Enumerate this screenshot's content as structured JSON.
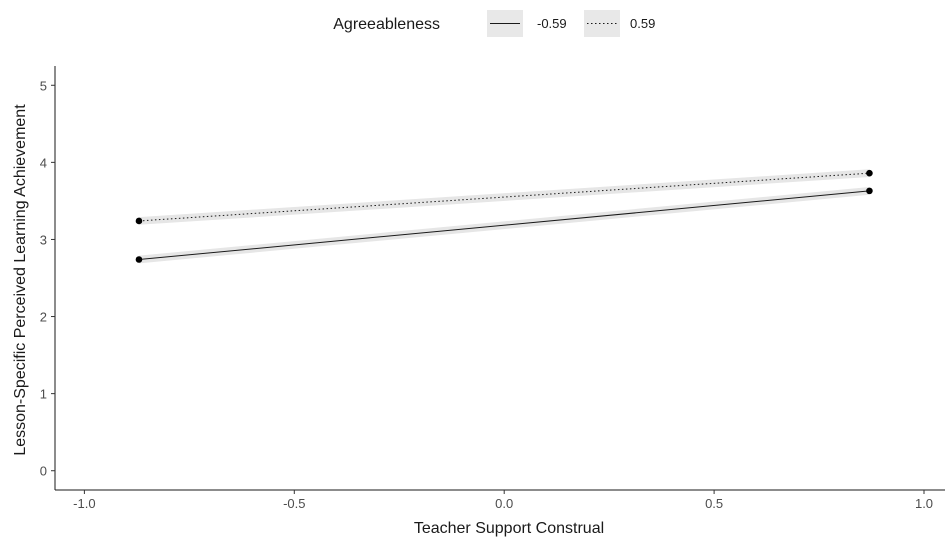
{
  "chart_data": {
    "type": "line",
    "xlabel": "Teacher Support Construal",
    "ylabel": "Lesson-Specific Perceived Learning Achievement",
    "xlim": [
      -1.07,
      1.05
    ],
    "ylim": [
      -0.25,
      5.25
    ],
    "x_ticks": [
      -1.0,
      -0.5,
      0.0,
      0.5,
      1.0
    ],
    "x_tick_labels": [
      "-1.0",
      "-0.5",
      "0.0",
      "0.5",
      "1.0"
    ],
    "y_ticks": [
      0,
      1,
      2,
      3,
      4,
      5
    ],
    "y_tick_labels": [
      "0",
      "1",
      "2",
      "3",
      "4",
      "5"
    ],
    "grid": false,
    "legend": {
      "title": "Agreeableness",
      "position": "top"
    },
    "series": [
      {
        "name": "-0.59",
        "linestyle": "solid",
        "color": "#1a1a1a",
        "x": [
          -0.87,
          0.87
        ],
        "y": [
          2.74,
          3.63
        ],
        "ci_halfwidth": 0.05
      },
      {
        "name": "0.59",
        "linestyle": "dotted",
        "color": "#1a1a1a",
        "x": [
          -0.87,
          0.87
        ],
        "y": [
          3.24,
          3.86
        ],
        "ci_halfwidth": 0.05
      }
    ],
    "ribbon_color": "#e6e6e6"
  }
}
